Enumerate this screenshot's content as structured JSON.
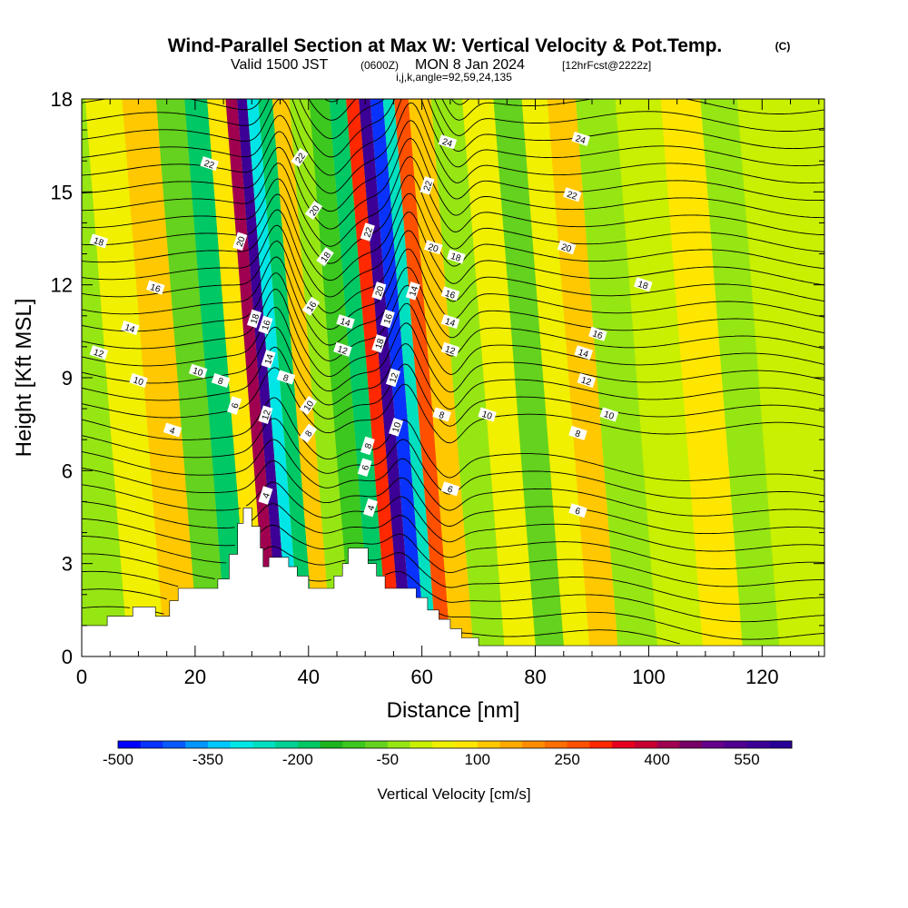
{
  "title": {
    "main": "Wind-Parallel Section at Max W: Vertical Velocity & Pot.Temp.",
    "copyright": "(C)",
    "valid_prefix": "Valid 1500 JST",
    "valid_z": "(0600Z)",
    "valid_date": "MON 8 Jan 2024",
    "forecast": "[12hrFcst@2222z]",
    "indices": "i,j,k,angle=92,59,24,135"
  },
  "chart_data": {
    "type": "heatmap",
    "xlabel": "Distance [nm]",
    "ylabel": "Height [Kft MSL]",
    "xlim": [
      0,
      131
    ],
    "ylim": [
      0,
      18
    ],
    "x_ticks": [
      "0",
      "20",
      "40",
      "60",
      "80",
      "100",
      "120"
    ],
    "x_tick_values": [
      0,
      20,
      40,
      60,
      80,
      100,
      120
    ],
    "y_ticks": [
      "0",
      "3",
      "6",
      "9",
      "12",
      "15",
      "18"
    ],
    "y_tick_values": [
      0,
      3,
      6,
      9,
      12,
      15,
      18
    ],
    "colorbar": {
      "label": "Vertical Velocity [cm/s]",
      "tick_labels": [
        "-500",
        "-350",
        "-200",
        "-50",
        "100",
        "250",
        "400",
        "550"
      ],
      "min": -500,
      "max": 625,
      "step": 37.5,
      "colors": [
        "#0000ff",
        "#0a32ff",
        "#0a5aff",
        "#0096ff",
        "#00c8ff",
        "#00e6e6",
        "#00e0c0",
        "#00d296",
        "#00c864",
        "#1eb41e",
        "#3cc81e",
        "#64d21e",
        "#96e614",
        "#c8f000",
        "#f0f000",
        "#ffe600",
        "#ffc800",
        "#ffaa00",
        "#ff8c00",
        "#ff6e00",
        "#ff5000",
        "#ff2800",
        "#e6001e",
        "#c80032",
        "#a00050",
        "#780064",
        "#64008c",
        "#500090",
        "#3c0096",
        "#280096"
      ]
    },
    "vertical_velocity_bands": [
      {
        "x": 3,
        "w": -20
      },
      {
        "x": 10,
        "w": 40
      },
      {
        "x": 16,
        "w": 130
      },
      {
        "x": 22,
        "w": -60
      },
      {
        "x": 26,
        "w": -180
      },
      {
        "x": 30,
        "w": 80
      },
      {
        "x": 32.5,
        "w": 420
      },
      {
        "x": 34,
        "w": 580
      },
      {
        "x": 36,
        "w": -280
      },
      {
        "x": 38,
        "w": -200
      },
      {
        "x": 41,
        "w": 100
      },
      {
        "x": 44,
        "w": -40
      },
      {
        "x": 48,
        "w": -120
      },
      {
        "x": 51,
        "w": -200
      },
      {
        "x": 54,
        "w": 300
      },
      {
        "x": 55.5,
        "w": 560
      },
      {
        "x": 58,
        "w": -460
      },
      {
        "x": 60,
        "w": -250
      },
      {
        "x": 62,
        "w": 250
      },
      {
        "x": 65,
        "w": 120
      },
      {
        "x": 70,
        "w": -40
      },
      {
        "x": 76,
        "w": 40
      },
      {
        "x": 81,
        "w": -60
      },
      {
        "x": 86,
        "w": 30
      },
      {
        "x": 90,
        "w": 110
      },
      {
        "x": 96,
        "w": -20
      },
      {
        "x": 104,
        "w": 20
      },
      {
        "x": 112,
        "w": 80
      },
      {
        "x": 118,
        "w": -40
      },
      {
        "x": 125,
        "w": 20
      }
    ],
    "terrain": [
      {
        "x": 0,
        "h": 1.0
      },
      {
        "x": 4.5,
        "h": 1.0
      },
      {
        "x": 4.5,
        "h": 1.3
      },
      {
        "x": 9,
        "h": 1.3
      },
      {
        "x": 9,
        "h": 1.6
      },
      {
        "x": 13,
        "h": 1.6
      },
      {
        "x": 13,
        "h": 1.3
      },
      {
        "x": 15.5,
        "h": 1.3
      },
      {
        "x": 15.5,
        "h": 1.8
      },
      {
        "x": 17,
        "h": 1.8
      },
      {
        "x": 17,
        "h": 2.2
      },
      {
        "x": 24,
        "h": 2.2
      },
      {
        "x": 24,
        "h": 2.5
      },
      {
        "x": 26,
        "h": 2.5
      },
      {
        "x": 26,
        "h": 3.3
      },
      {
        "x": 27.5,
        "h": 3.3
      },
      {
        "x": 27.5,
        "h": 4.3
      },
      {
        "x": 28.5,
        "h": 4.3
      },
      {
        "x": 28.5,
        "h": 4.8
      },
      {
        "x": 30,
        "h": 4.8
      },
      {
        "x": 30,
        "h": 4.2
      },
      {
        "x": 31.5,
        "h": 4.2
      },
      {
        "x": 31.5,
        "h": 3.5
      },
      {
        "x": 32,
        "h": 3.5
      },
      {
        "x": 32,
        "h": 2.9
      },
      {
        "x": 33,
        "h": 2.9
      },
      {
        "x": 33,
        "h": 3.2
      },
      {
        "x": 36.5,
        "h": 3.2
      },
      {
        "x": 36.5,
        "h": 2.9
      },
      {
        "x": 38,
        "h": 2.9
      },
      {
        "x": 38,
        "h": 2.6
      },
      {
        "x": 40,
        "h": 2.6
      },
      {
        "x": 40,
        "h": 2.2
      },
      {
        "x": 44.5,
        "h": 2.2
      },
      {
        "x": 44.5,
        "h": 2.6
      },
      {
        "x": 46,
        "h": 2.6
      },
      {
        "x": 46,
        "h": 3.0
      },
      {
        "x": 47,
        "h": 3.0
      },
      {
        "x": 47,
        "h": 3.5
      },
      {
        "x": 50.5,
        "h": 3.5
      },
      {
        "x": 50.5,
        "h": 3.0
      },
      {
        "x": 52,
        "h": 3.0
      },
      {
        "x": 52,
        "h": 2.6
      },
      {
        "x": 53.5,
        "h": 2.6
      },
      {
        "x": 53.5,
        "h": 2.2
      },
      {
        "x": 59,
        "h": 2.2
      },
      {
        "x": 59,
        "h": 1.9
      },
      {
        "x": 61,
        "h": 1.9
      },
      {
        "x": 61,
        "h": 1.5
      },
      {
        "x": 63,
        "h": 1.5
      },
      {
        "x": 63,
        "h": 1.2
      },
      {
        "x": 65,
        "h": 1.2
      },
      {
        "x": 65,
        "h": 0.9
      },
      {
        "x": 67,
        "h": 0.9
      },
      {
        "x": 67,
        "h": 0.6
      },
      {
        "x": 70,
        "h": 0.6
      },
      {
        "x": 70,
        "h": 0.35
      },
      {
        "x": 131,
        "h": 0.35
      }
    ],
    "contour_labels": [
      {
        "x": 3,
        "y": 13.4,
        "t": "18"
      },
      {
        "x": 3,
        "y": 9.8,
        "t": "12"
      },
      {
        "x": 8.5,
        "y": 10.6,
        "t": "14"
      },
      {
        "x": 10,
        "y": 8.9,
        "t": "10"
      },
      {
        "x": 13,
        "y": 11.9,
        "t": "16"
      },
      {
        "x": 16,
        "y": 7.3,
        "t": "4"
      },
      {
        "x": 22.5,
        "y": 15.9,
        "t": "22"
      },
      {
        "x": 20.5,
        "y": 9.2,
        "t": "10"
      },
      {
        "x": 24.5,
        "y": 8.9,
        "t": "8"
      },
      {
        "x": 27,
        "y": 8.1,
        "t": "6"
      },
      {
        "x": 28,
        "y": 13.4,
        "t": "20"
      },
      {
        "x": 30.5,
        "y": 10.9,
        "t": "18"
      },
      {
        "x": 32.5,
        "y": 10.7,
        "t": "16"
      },
      {
        "x": 33,
        "y": 9.6,
        "t": "14"
      },
      {
        "x": 32.5,
        "y": 7.8,
        "t": "12"
      },
      {
        "x": 32.5,
        "y": 5.2,
        "t": "4"
      },
      {
        "x": 38.5,
        "y": 16.1,
        "t": "22"
      },
      {
        "x": 41,
        "y": 14.4,
        "t": "20"
      },
      {
        "x": 43,
        "y": 12.9,
        "t": "18"
      },
      {
        "x": 40.5,
        "y": 11.3,
        "t": "16"
      },
      {
        "x": 36,
        "y": 9.0,
        "t": "8"
      },
      {
        "x": 40,
        "y": 8.1,
        "t": "10"
      },
      {
        "x": 40,
        "y": 7.2,
        "t": "8"
      },
      {
        "x": 46.5,
        "y": 10.8,
        "t": "14"
      },
      {
        "x": 46,
        "y": 9.9,
        "t": "12"
      },
      {
        "x": 50.5,
        "y": 13.7,
        "t": "22"
      },
      {
        "x": 52.5,
        "y": 11.8,
        "t": "20"
      },
      {
        "x": 54,
        "y": 10.9,
        "t": "16"
      },
      {
        "x": 52.5,
        "y": 10.1,
        "t": "18"
      },
      {
        "x": 55,
        "y": 9.0,
        "t": "12"
      },
      {
        "x": 55.5,
        "y": 7.4,
        "t": "10"
      },
      {
        "x": 50.5,
        "y": 6.8,
        "t": "8"
      },
      {
        "x": 50,
        "y": 6.1,
        "t": "6"
      },
      {
        "x": 51,
        "y": 4.8,
        "t": "4"
      },
      {
        "x": 58.5,
        "y": 11.8,
        "t": "14"
      },
      {
        "x": 61,
        "y": 15.2,
        "t": "22"
      },
      {
        "x": 62,
        "y": 13.2,
        "t": "20"
      },
      {
        "x": 64.5,
        "y": 16.6,
        "t": "24"
      },
      {
        "x": 66,
        "y": 12.9,
        "t": "18"
      },
      {
        "x": 65,
        "y": 11.7,
        "t": "16"
      },
      {
        "x": 65,
        "y": 10.8,
        "t": "14"
      },
      {
        "x": 65,
        "y": 9.9,
        "t": "12"
      },
      {
        "x": 63.5,
        "y": 7.8,
        "t": "8"
      },
      {
        "x": 65,
        "y": 5.4,
        "t": "6"
      },
      {
        "x": 71.5,
        "y": 7.8,
        "t": "10"
      },
      {
        "x": 88,
        "y": 16.7,
        "t": "24"
      },
      {
        "x": 86.5,
        "y": 14.9,
        "t": "22"
      },
      {
        "x": 85.5,
        "y": 13.2,
        "t": "20"
      },
      {
        "x": 99,
        "y": 12.0,
        "t": "18"
      },
      {
        "x": 91,
        "y": 10.4,
        "t": "16"
      },
      {
        "x": 88.5,
        "y": 9.8,
        "t": "14"
      },
      {
        "x": 89,
        "y": 8.9,
        "t": "12"
      },
      {
        "x": 93,
        "y": 7.8,
        "t": "10"
      },
      {
        "x": 87.5,
        "y": 7.2,
        "t": "8"
      },
      {
        "x": 87.5,
        "y": 4.7,
        "t": "6"
      }
    ]
  }
}
